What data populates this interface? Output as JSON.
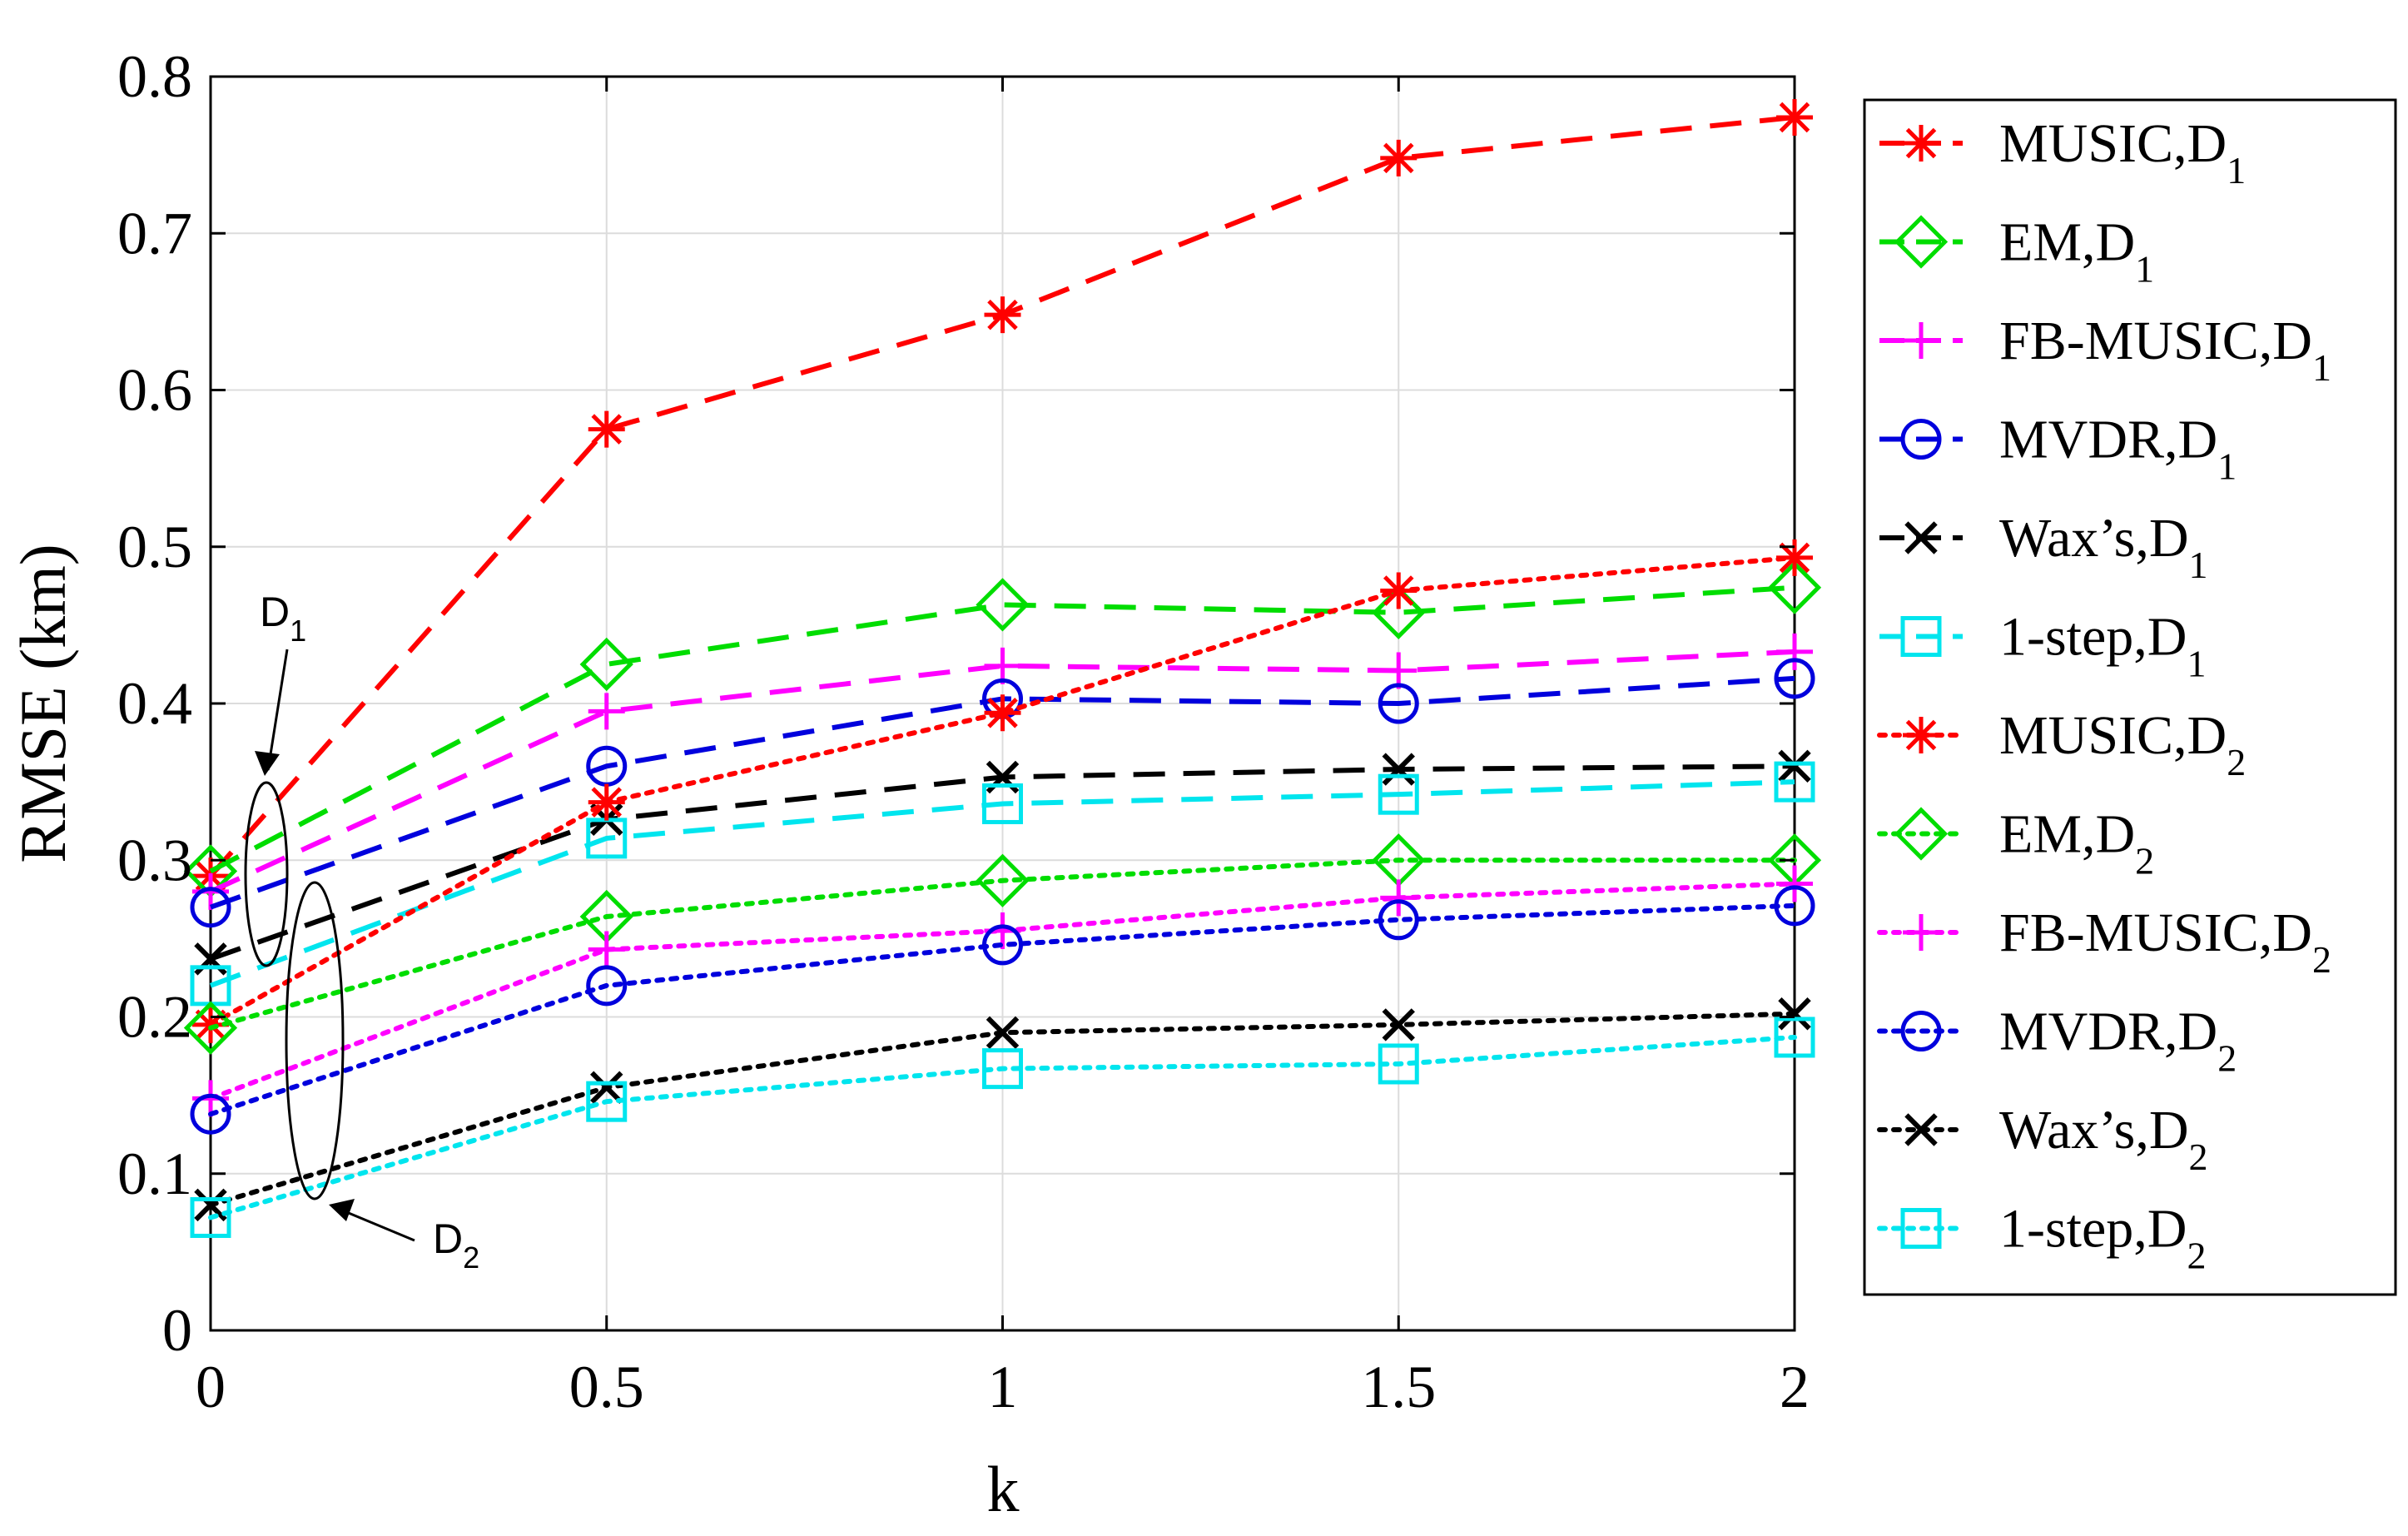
{
  "chart_data": {
    "type": "line",
    "title": "",
    "xlabel": "k",
    "ylabel": "RMSE (km)",
    "xlim": [
      0,
      2
    ],
    "ylim": [
      0,
      0.8
    ],
    "xticks": [
      "0",
      "0.5",
      "1",
      "1.5",
      "2"
    ],
    "yticks": [
      "0",
      "0.1",
      "0.2",
      "0.3",
      "0.4",
      "0.5",
      "0.6",
      "0.7",
      "0.8"
    ],
    "grid": true,
    "legend_position": "outside-right",
    "x": [
      0,
      0.5,
      1,
      1.5,
      2
    ],
    "series": [
      {
        "name": "MUSIC,D",
        "sub": "1",
        "color": "#ff0000",
        "dash": "dashed",
        "marker": "asterisk",
        "values": [
          0.29,
          0.575,
          0.648,
          0.748,
          0.774
        ]
      },
      {
        "name": "EM,D",
        "sub": "1",
        "color": "#00dd00",
        "dash": "dashed",
        "marker": "diamond",
        "values": [
          0.293,
          0.425,
          0.463,
          0.458,
          0.474
        ]
      },
      {
        "name": "FB-MUSIC,D",
        "sub": "1",
        "color": "#ff00ff",
        "dash": "dashed",
        "marker": "plus",
        "values": [
          0.28,
          0.395,
          0.424,
          0.421,
          0.433
        ]
      },
      {
        "name": "MVDR,D",
        "sub": "1",
        "color": "#0000dd",
        "dash": "dashed",
        "marker": "circle",
        "values": [
          0.27,
          0.36,
          0.403,
          0.4,
          0.416
        ]
      },
      {
        "name": "Wax’s,D",
        "sub": "1",
        "color": "#000000",
        "dash": "dashed",
        "marker": "cross",
        "values": [
          0.237,
          0.326,
          0.353,
          0.358,
          0.36
        ]
      },
      {
        "name": "1-step,D",
        "sub": "1",
        "color": "#00e5ee",
        "dash": "dashed",
        "marker": "square",
        "values": [
          0.22,
          0.314,
          0.336,
          0.342,
          0.35
        ]
      },
      {
        "name": "MUSIC,D",
        "sub": "2",
        "color": "#ff0000",
        "dash": "dotted",
        "marker": "asterisk",
        "values": [
          0.195,
          0.337,
          0.394,
          0.472,
          0.493
        ]
      },
      {
        "name": "EM,D",
        "sub": "2",
        "color": "#00dd00",
        "dash": "dotted",
        "marker": "diamond",
        "values": [
          0.193,
          0.264,
          0.287,
          0.3,
          0.3
        ]
      },
      {
        "name": "FB-MUSIC,D",
        "sub": "2",
        "color": "#ff00ff",
        "dash": "dotted",
        "marker": "plus",
        "values": [
          0.148,
          0.243,
          0.255,
          0.276,
          0.285
        ]
      },
      {
        "name": "MVDR,D",
        "sub": "2",
        "color": "#0000dd",
        "dash": "dotted",
        "marker": "circle",
        "values": [
          0.138,
          0.22,
          0.246,
          0.262,
          0.271
        ]
      },
      {
        "name": "Wax’s,D",
        "sub": "2",
        "color": "#000000",
        "dash": "dotted",
        "marker": "cross",
        "values": [
          0.08,
          0.155,
          0.19,
          0.195,
          0.202
        ]
      },
      {
        "name": "1-step,D",
        "sub": "2",
        "color": "#00e5ee",
        "dash": "dotted",
        "marker": "square",
        "values": [
          0.072,
          0.146,
          0.167,
          0.17,
          0.187
        ]
      }
    ],
    "annotations": [
      {
        "text": "D",
        "sub": "1"
      },
      {
        "text": "D",
        "sub": "2"
      }
    ]
  }
}
